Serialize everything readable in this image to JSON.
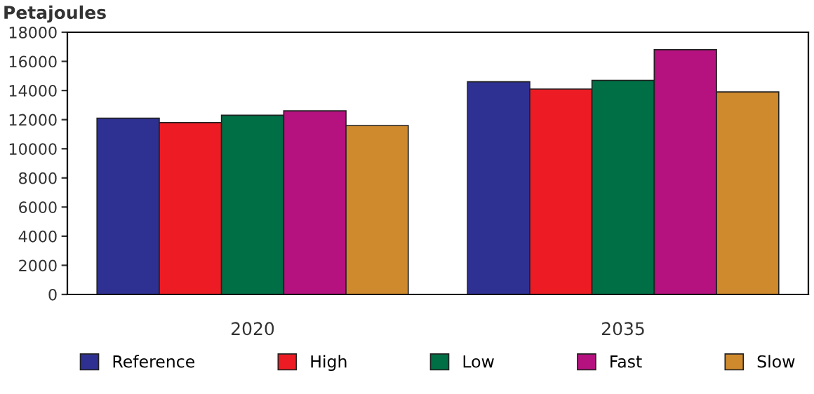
{
  "chart_data": {
    "type": "bar",
    "ylabel": "Petajoules",
    "categories": [
      "2020",
      "2035"
    ],
    "series": [
      {
        "name": "Reference",
        "color": "#2e3192",
        "values": [
          12100,
          14600
        ]
      },
      {
        "name": "High",
        "color": "#ed1c24",
        "values": [
          11800,
          14100
        ]
      },
      {
        "name": "Low",
        "color": "#006f45",
        "values": [
          12300,
          14700
        ]
      },
      {
        "name": "Fast",
        "color": "#b5117f",
        "values": [
          12600,
          16800
        ]
      },
      {
        "name": "Slow",
        "color": "#d08a2e",
        "values": [
          11600,
          13900
        ]
      }
    ],
    "ylim": [
      0,
      18000
    ],
    "yticks": [
      0,
      2000,
      4000,
      6000,
      8000,
      10000,
      12000,
      14000,
      16000,
      18000
    ],
    "grid": false,
    "legend": "bottom"
  }
}
